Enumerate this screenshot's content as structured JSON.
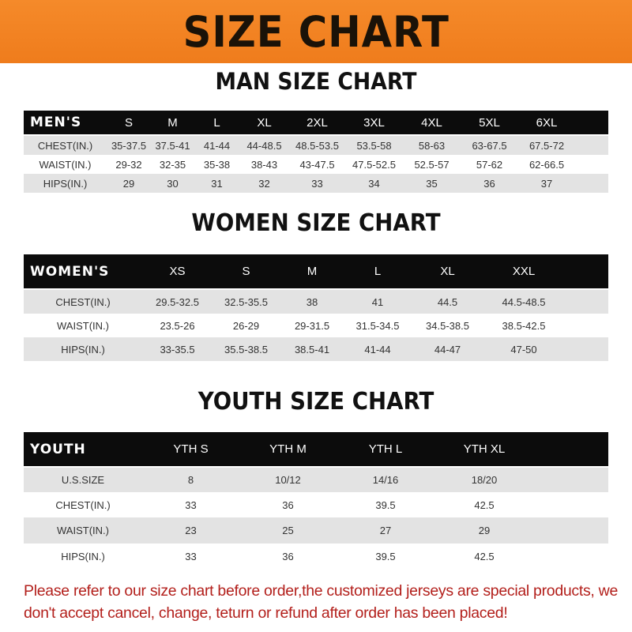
{
  "banner_title": "SIZE CHART",
  "colors": {
    "banner": "#ef7c1c",
    "header": "#0c0c0c",
    "note": "#b3201c"
  },
  "men": {
    "title": "MAN SIZE CHART",
    "header": [
      "MEN'S",
      "S",
      "M",
      "L",
      "XL",
      "2XL",
      "3XL",
      "4XL",
      "5XL",
      "6XL"
    ],
    "rows": [
      [
        "CHEST(IN.)",
        "35-37.5",
        "37.5-41",
        "41-44",
        "44-48.5",
        "48.5-53.5",
        "53.5-58",
        "58-63",
        "63-67.5",
        "67.5-72"
      ],
      [
        "WAIST(IN.)",
        "29-32",
        "32-35",
        "35-38",
        "38-43",
        "43-47.5",
        "47.5-52.5",
        "52.5-57",
        "57-62",
        "62-66.5"
      ],
      [
        "HIPS(IN.)",
        "29",
        "30",
        "31",
        "32",
        "33",
        "34",
        "35",
        "36",
        "37"
      ]
    ]
  },
  "women": {
    "title": "WOMEN SIZE CHART",
    "header": [
      "WOMEN'S",
      "XS",
      "S",
      "M",
      "L",
      "XL",
      "XXL"
    ],
    "rows": [
      [
        "CHEST(IN.)",
        "29.5-32.5",
        "32.5-35.5",
        "38",
        "41",
        "44.5",
        "44.5-48.5"
      ],
      [
        "WAIST(IN.)",
        "23.5-26",
        "26-29",
        "29-31.5",
        "31.5-34.5",
        "34.5-38.5",
        "38.5-42.5"
      ],
      [
        "HIPS(IN.)",
        "33-35.5",
        "35.5-38.5",
        "38.5-41",
        "41-44",
        "44-47",
        "47-50"
      ]
    ]
  },
  "youth": {
    "title": "YOUTH SIZE CHART",
    "header": [
      "YOUTH",
      "YTH S",
      "YTH M",
      "YTH L",
      "YTH XL"
    ],
    "rows": [
      [
        "U.S.SIZE",
        "8",
        "10/12",
        "14/16",
        "18/20"
      ],
      [
        "CHEST(IN.)",
        "33",
        "36",
        "39.5",
        "42.5"
      ],
      [
        "WAIST(IN.)",
        "23",
        "25",
        "27",
        "29"
      ],
      [
        "HIPS(IN.)",
        "33",
        "36",
        "39.5",
        "42.5"
      ]
    ]
  },
  "note": "Please refer to our size chart before order,the customized jerseys are special products, we don't accept cancel, change, teturn or refund after order has been placed!"
}
